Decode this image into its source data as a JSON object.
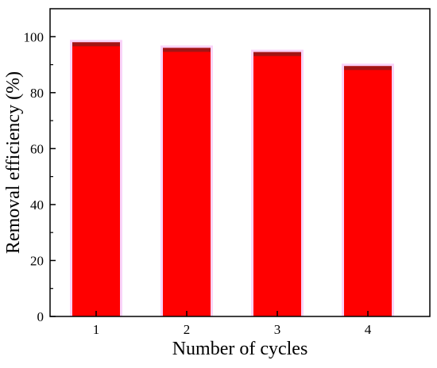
{
  "chart_data": {
    "type": "bar",
    "categories": [
      "1",
      "2",
      "3",
      "4"
    ],
    "values": [
      98,
      96,
      94.5,
      89.5
    ],
    "xlabel": "Number of cycles",
    "ylabel": "Removal efficiency (%)",
    "ylim": [
      0,
      110
    ],
    "yticks": [
      0,
      20,
      40,
      60,
      80,
      100
    ],
    "grid": false,
    "bar_color": "#ff0000",
    "bar_edge_color": "#8b1a1a",
    "glow_color": "#ee82ee"
  }
}
